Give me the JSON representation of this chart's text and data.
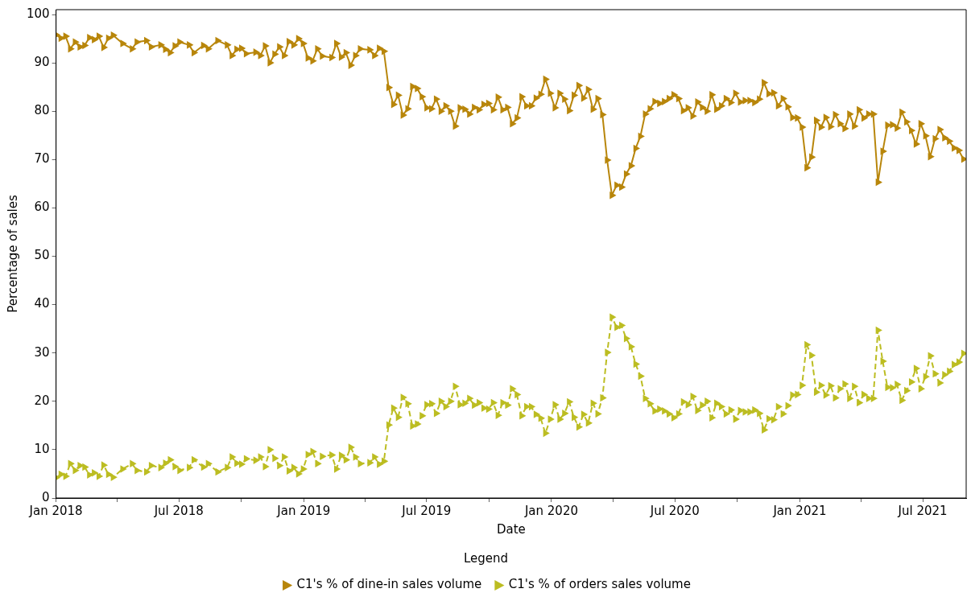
{
  "chart_data": {
    "type": "line",
    "xlabel": "Date",
    "ylabel": "Percentage of sales",
    "legend_title": "Legend",
    "legend": "bottom",
    "grid": false,
    "marker": "triangle",
    "xlim": [
      "2018-01-01",
      "2021-09-03"
    ],
    "ylim": [
      0,
      101
    ],
    "xticks": [
      {
        "value": "2018-01",
        "label": "Jan 2018"
      },
      {
        "value": "2018-04",
        "label": null
      },
      {
        "value": "2018-07",
        "label": "Jul 2018"
      },
      {
        "value": "2018-10",
        "label": null
      },
      {
        "value": "2019-01",
        "label": "Jan 2019"
      },
      {
        "value": "2019-04",
        "label": null
      },
      {
        "value": "2019-07",
        "label": "Jul 2019"
      },
      {
        "value": "2019-10",
        "label": null
      },
      {
        "value": "2020-01",
        "label": "Jan 2020"
      },
      {
        "value": "2020-04",
        "label": null
      },
      {
        "value": "2020-07",
        "label": "Jul 2020"
      },
      {
        "value": "2020-10",
        "label": null
      },
      {
        "value": "2021-01",
        "label": "Jan 2021"
      },
      {
        "value": "2021-04",
        "label": null
      },
      {
        "value": "2021-07",
        "label": "Jul 2021"
      }
    ],
    "yticks": [
      0,
      10,
      20,
      30,
      40,
      50,
      60,
      70,
      80,
      90,
      100
    ],
    "x": [
      "2018-01-01",
      "2018-01-08",
      "2018-01-15",
      "2018-01-22",
      "2018-01-29",
      "2018-02-05",
      "2018-02-12",
      "2018-02-19",
      "2018-02-26",
      "2018-03-05",
      "2018-03-12",
      "2018-03-19",
      "2018-03-26",
      "2018-04-09",
      "2018-04-23",
      "2018-04-30",
      "2018-05-14",
      "2018-05-21",
      "2018-06-04",
      "2018-06-11",
      "2018-06-18",
      "2018-06-25",
      "2018-07-02",
      "2018-07-16",
      "2018-07-23",
      "2018-08-06",
      "2018-08-13",
      "2018-08-27",
      "2018-09-10",
      "2018-09-17",
      "2018-09-24",
      "2018-10-01",
      "2018-10-08",
      "2018-10-22",
      "2018-10-29",
      "2018-11-05",
      "2018-11-12",
      "2018-11-19",
      "2018-11-26",
      "2018-12-03",
      "2018-12-10",
      "2018-12-17",
      "2018-12-24",
      "2018-12-31",
      "2019-01-07",
      "2019-01-14",
      "2019-01-21",
      "2019-01-28",
      "2019-02-11",
      "2019-02-18",
      "2019-02-25",
      "2019-03-04",
      "2019-03-11",
      "2019-03-18",
      "2019-03-25",
      "2019-04-08",
      "2019-04-15",
      "2019-04-22",
      "2019-04-29",
      "2019-05-06",
      "2019-05-13",
      "2019-05-20",
      "2019-05-27",
      "2019-06-03",
      "2019-06-10",
      "2019-06-17",
      "2019-06-24",
      "2019-07-01",
      "2019-07-08",
      "2019-07-15",
      "2019-07-22",
      "2019-07-29",
      "2019-08-05",
      "2019-08-12",
      "2019-08-19",
      "2019-08-26",
      "2019-09-02",
      "2019-09-09",
      "2019-09-16",
      "2019-09-23",
      "2019-09-30",
      "2019-10-07",
      "2019-10-14",
      "2019-10-21",
      "2019-10-28",
      "2019-11-04",
      "2019-11-11",
      "2019-11-18",
      "2019-11-25",
      "2019-12-02",
      "2019-12-09",
      "2019-12-16",
      "2019-12-23",
      "2019-12-30",
      "2020-01-06",
      "2020-01-13",
      "2020-01-20",
      "2020-01-27",
      "2020-02-03",
      "2020-02-10",
      "2020-02-17",
      "2020-02-24",
      "2020-03-02",
      "2020-03-09",
      "2020-03-16",
      "2020-03-23",
      "2020-03-30",
      "2020-04-06",
      "2020-04-13",
      "2020-04-20",
      "2020-04-27",
      "2020-05-04",
      "2020-05-11",
      "2020-05-18",
      "2020-05-25",
      "2020-06-01",
      "2020-06-08",
      "2020-06-15",
      "2020-06-22",
      "2020-06-29",
      "2020-07-06",
      "2020-07-13",
      "2020-07-20",
      "2020-07-27",
      "2020-08-03",
      "2020-08-10",
      "2020-08-17",
      "2020-08-24",
      "2020-08-31",
      "2020-09-07",
      "2020-09-14",
      "2020-09-21",
      "2020-09-28",
      "2020-10-05",
      "2020-10-12",
      "2020-10-19",
      "2020-10-26",
      "2020-11-02",
      "2020-11-09",
      "2020-11-16",
      "2020-11-23",
      "2020-11-30",
      "2020-12-07",
      "2020-12-14",
      "2020-12-21",
      "2020-12-28",
      "2021-01-04",
      "2021-01-11",
      "2021-01-18",
      "2021-01-25",
      "2021-02-01",
      "2021-02-08",
      "2021-02-15",
      "2021-02-22",
      "2021-03-01",
      "2021-03-08",
      "2021-03-15",
      "2021-03-22",
      "2021-03-29",
      "2021-04-05",
      "2021-04-12",
      "2021-04-19",
      "2021-04-26",
      "2021-05-03",
      "2021-05-10",
      "2021-05-17",
      "2021-05-24",
      "2021-05-31",
      "2021-06-07",
      "2021-06-14",
      "2021-06-21",
      "2021-06-28",
      "2021-07-05",
      "2021-07-12",
      "2021-07-19",
      "2021-07-26",
      "2021-08-02",
      "2021-08-09",
      "2021-08-16",
      "2021-08-23",
      "2021-08-30"
    ],
    "series": [
      {
        "name": "C1's % of dine-in sales volume",
        "color": "#b8860b",
        "line_style": "solid",
        "values": [
          95.8,
          95.1,
          95.5,
          92.9,
          94.3,
          93.3,
          93.6,
          95.2,
          94.8,
          95.5,
          93.2,
          95.1,
          95.7,
          94.0,
          92.9,
          94.3,
          94.6,
          93.3,
          93.7,
          92.8,
          92.1,
          93.5,
          94.3,
          93.7,
          92.1,
          93.6,
          92.9,
          94.6,
          93.7,
          91.5,
          92.8,
          93.0,
          91.9,
          92.2,
          91.5,
          93.5,
          90.0,
          91.8,
          93.3,
          91.5,
          94.4,
          93.7,
          95.0,
          94.0,
          91.0,
          90.4,
          92.9,
          91.4,
          91.1,
          94.0,
          91.2,
          92.1,
          89.5,
          91.5,
          92.9,
          92.7,
          91.5,
          93.0,
          92.4,
          84.9,
          81.4,
          83.3,
          79.2,
          80.5,
          85.1,
          84.7,
          83.0,
          80.7,
          80.5,
          82.5,
          80.0,
          81.1,
          80.0,
          76.9,
          80.7,
          80.4,
          79.4,
          80.8,
          80.3,
          81.4,
          81.6,
          80.3,
          82.9,
          80.3,
          80.8,
          77.4,
          78.6,
          83.0,
          81.1,
          81.1,
          82.7,
          83.5,
          86.6,
          83.7,
          80.7,
          83.7,
          82.5,
          80.1,
          83.3,
          85.3,
          82.7,
          84.5,
          80.4,
          82.6,
          79.3,
          69.9,
          62.6,
          64.7,
          64.3,
          67.0,
          68.7,
          72.3,
          74.8,
          79.4,
          80.5,
          82.0,
          81.6,
          82.0,
          82.6,
          83.4,
          82.6,
          80.1,
          80.7,
          79.0,
          81.9,
          80.8,
          80.0,
          83.4,
          80.4,
          81.1,
          82.6,
          81.8,
          83.7,
          81.9,
          82.2,
          82.2,
          81.8,
          82.5,
          85.9,
          83.6,
          83.8,
          81.1,
          82.6,
          80.9,
          78.7,
          78.6,
          76.7,
          68.3,
          70.5,
          78.1,
          76.7,
          78.7,
          76.8,
          79.3,
          77.4,
          76.4,
          79.4,
          76.9,
          80.3,
          78.6,
          79.4,
          79.4,
          65.3,
          71.7,
          77.1,
          77.2,
          76.5,
          79.8,
          77.8,
          76.0,
          73.2,
          77.4,
          74.9,
          70.6,
          74.3,
          76.2,
          74.5,
          73.8,
          72.4,
          71.9,
          70.1
        ]
      },
      {
        "name": "C1's % of orders sales volume",
        "color": "#bcbd22",
        "line_style": "dashed",
        "values": [
          4.2,
          4.9,
          4.5,
          7.1,
          5.7,
          6.7,
          6.4,
          4.8,
          5.2,
          4.5,
          6.8,
          4.9,
          4.3,
          6.0,
          7.1,
          5.7,
          5.4,
          6.7,
          6.3,
          7.2,
          7.9,
          6.5,
          5.7,
          6.3,
          7.9,
          6.4,
          7.1,
          5.4,
          6.3,
          8.5,
          7.2,
          7.0,
          8.1,
          7.8,
          8.5,
          6.5,
          10.0,
          8.2,
          6.7,
          8.5,
          5.6,
          6.3,
          5.0,
          6.0,
          9.0,
          9.6,
          7.1,
          8.6,
          8.9,
          6.0,
          8.8,
          7.9,
          10.5,
          8.5,
          7.1,
          7.3,
          8.5,
          7.0,
          7.6,
          15.1,
          18.6,
          16.7,
          20.8,
          19.5,
          14.9,
          15.3,
          17.0,
          19.3,
          19.5,
          17.5,
          20.0,
          18.9,
          20.0,
          23.1,
          19.3,
          19.6,
          20.6,
          19.2,
          19.7,
          18.6,
          18.4,
          19.7,
          17.1,
          19.7,
          19.2,
          22.6,
          21.4,
          17.0,
          18.9,
          18.9,
          17.3,
          16.5,
          13.4,
          16.3,
          19.3,
          16.3,
          17.5,
          19.9,
          16.7,
          14.7,
          17.3,
          15.5,
          19.6,
          17.4,
          20.7,
          30.1,
          37.4,
          35.3,
          35.7,
          33.0,
          31.3,
          27.7,
          25.2,
          20.6,
          19.5,
          18.0,
          18.4,
          18.0,
          17.4,
          16.6,
          17.4,
          19.9,
          19.3,
          21.0,
          18.1,
          19.2,
          20.0,
          16.6,
          19.6,
          18.9,
          17.4,
          18.2,
          16.3,
          18.1,
          17.8,
          17.8,
          18.2,
          17.5,
          14.1,
          16.4,
          16.2,
          18.9,
          17.4,
          19.1,
          21.3,
          21.4,
          23.3,
          31.7,
          29.5,
          21.9,
          23.3,
          21.3,
          23.2,
          20.7,
          22.6,
          23.6,
          20.6,
          23.1,
          19.7,
          21.4,
          20.6,
          20.6,
          34.7,
          28.3,
          22.9,
          22.8,
          23.5,
          20.2,
          22.2,
          24.0,
          26.8,
          22.6,
          25.1,
          29.4,
          25.7,
          23.8,
          25.5,
          26.2,
          27.6,
          28.1,
          29.9
        ]
      }
    ]
  }
}
